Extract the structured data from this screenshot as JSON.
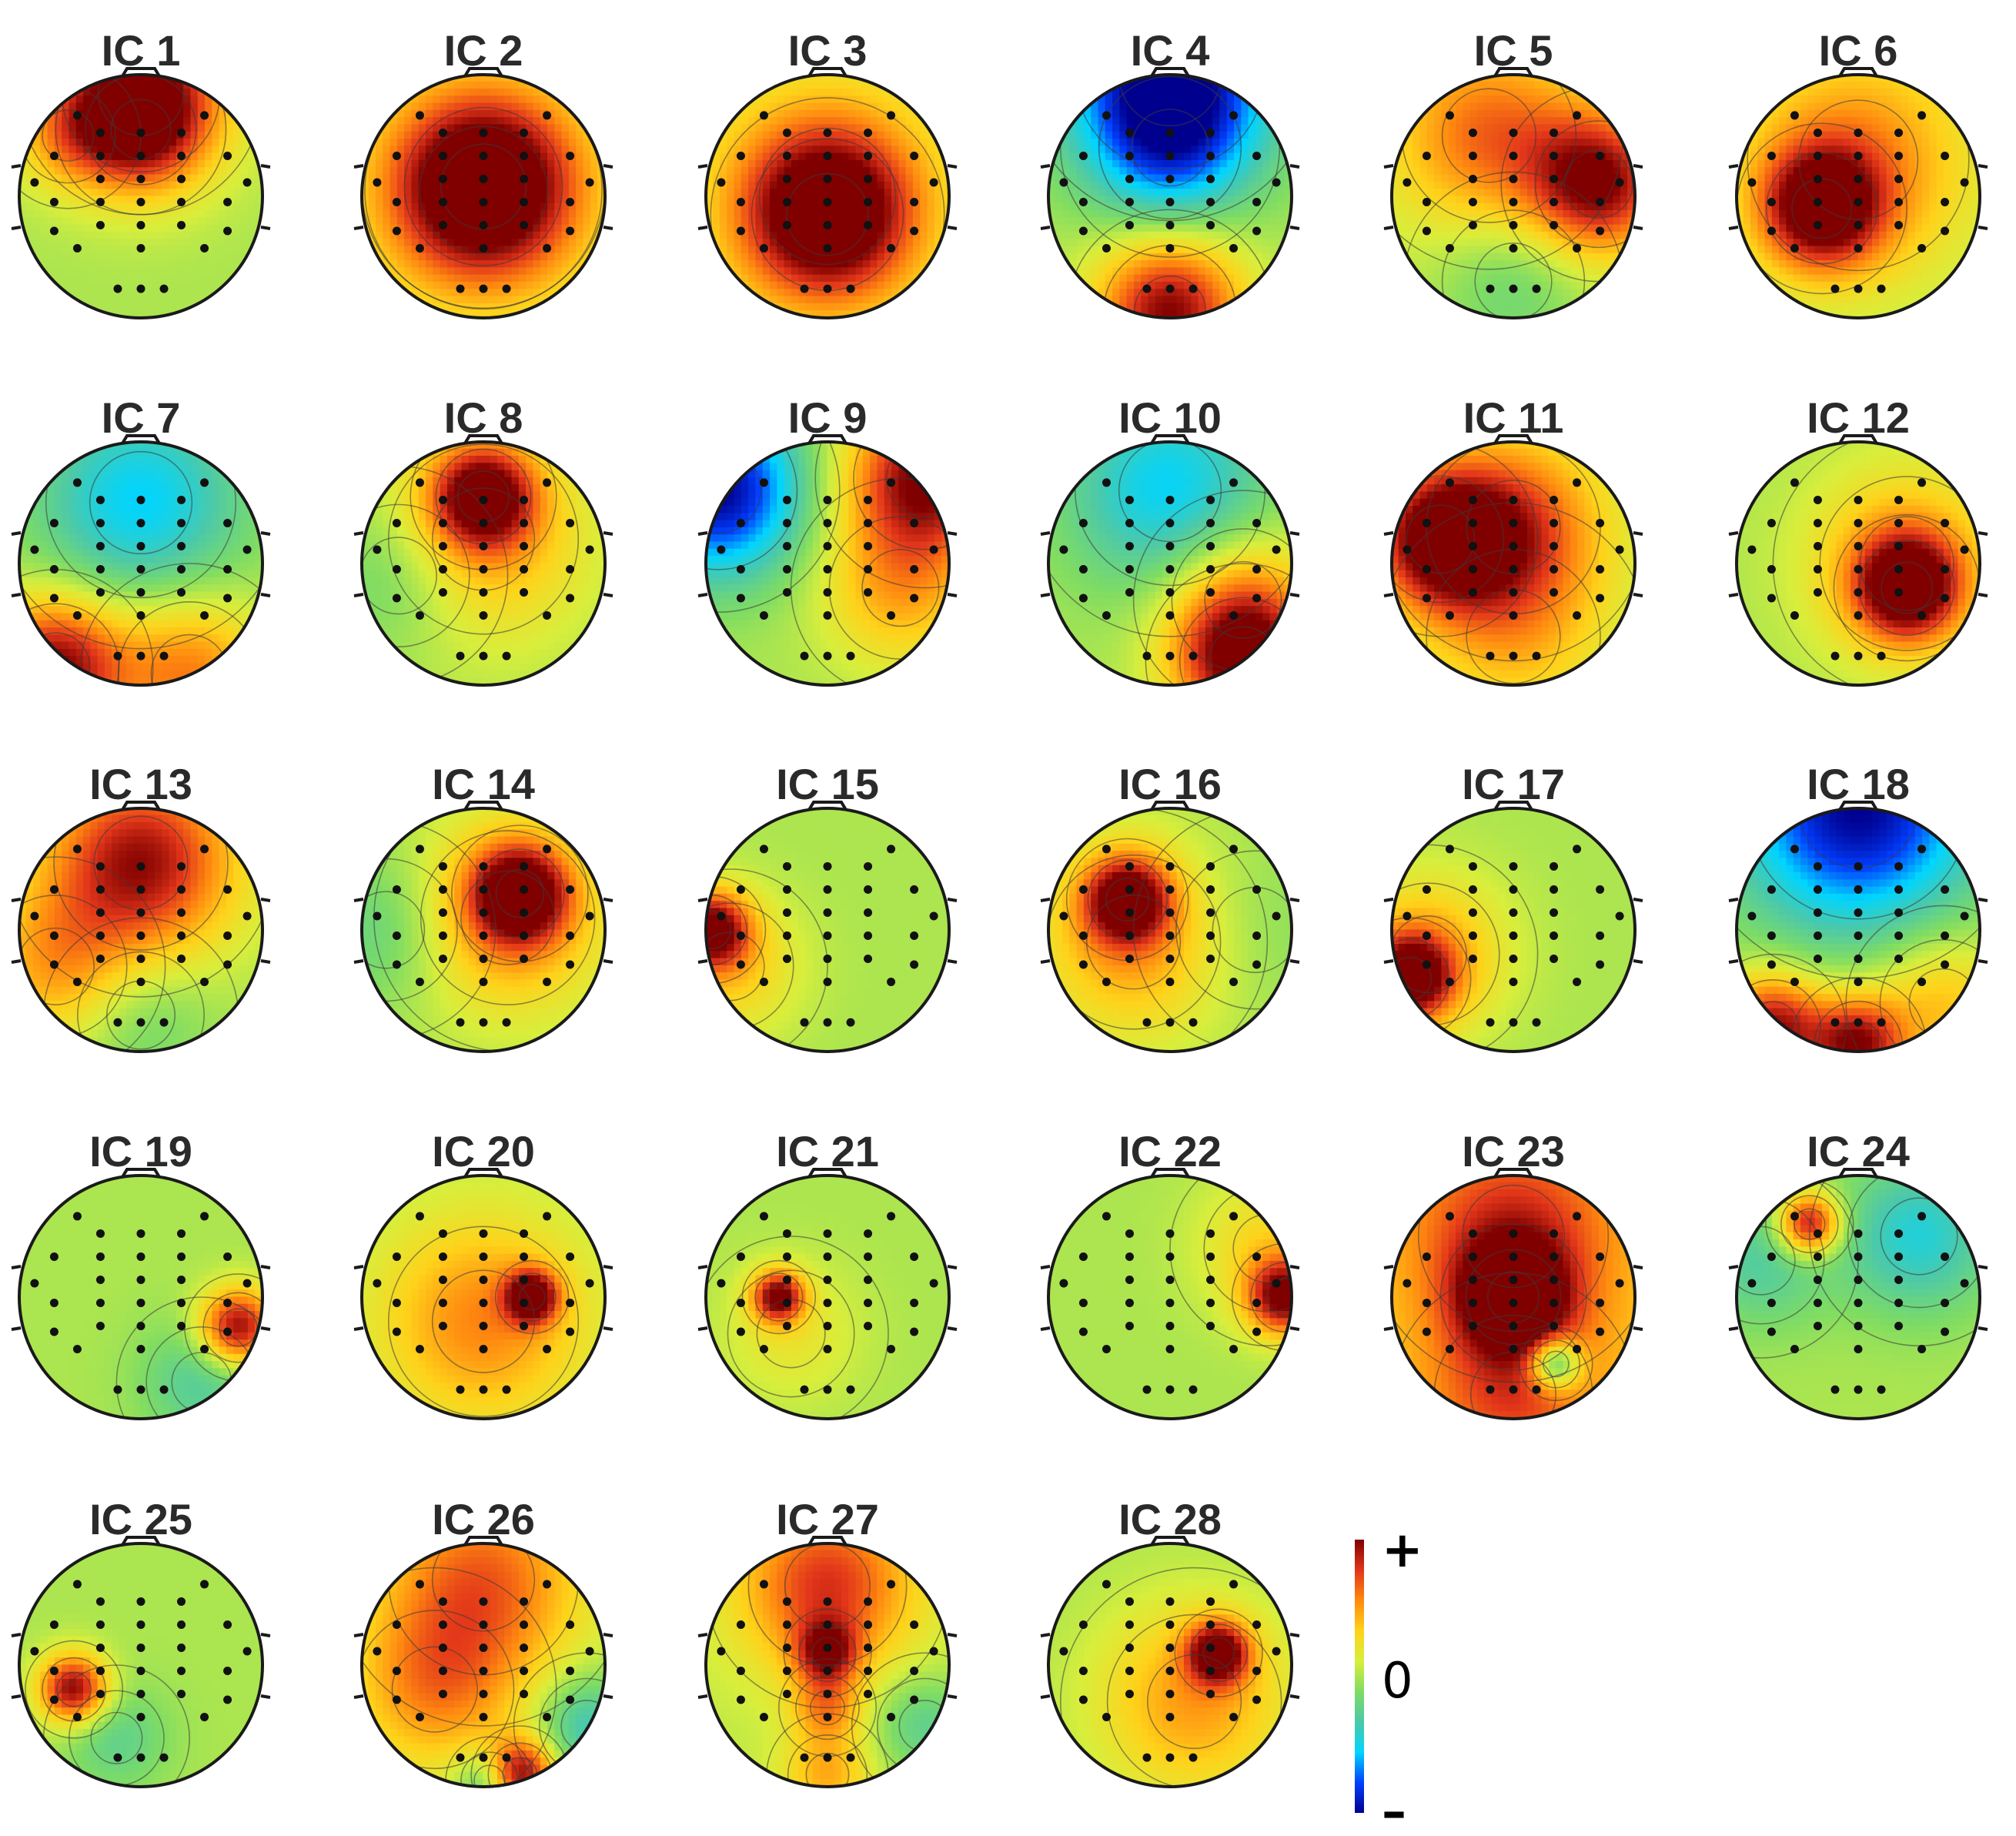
{
  "colors": {
    "background": "#ffffff",
    "head_outline": "#1a1a1a",
    "contour_line": "#3a3a3a",
    "electrode": "#111111",
    "title_text": "#2a2a2a",
    "jet": [
      "#00008f",
      "#0040ff",
      "#00d5ff",
      "#4cc9a8",
      "#7fdc63",
      "#d8ee3c",
      "#ffd21a",
      "#ff8a10",
      "#e2361a",
      "#800000"
    ]
  },
  "components": [
    {
      "title": "IC 1",
      "base": 0.0,
      "blobs": [
        [
          0,
          -0.85,
          0.95,
          0.5
        ],
        [
          0,
          -0.55,
          0.55,
          0.35
        ],
        [
          -0.6,
          -0.5,
          0.35,
          0.3
        ]
      ]
    },
    {
      "title": "IC 2",
      "base": 0.0,
      "blobs": [
        [
          0,
          -0.08,
          0.95,
          0.5
        ],
        [
          0,
          -0.05,
          0.55,
          0.75
        ]
      ]
    },
    {
      "title": "IC 3",
      "base": 0.0,
      "blobs": [
        [
          0,
          0.15,
          1.0,
          0.48
        ],
        [
          0,
          0.0,
          0.45,
          0.8
        ]
      ]
    },
    {
      "title": "IC 4",
      "base": 0.0,
      "blobs": [
        [
          0,
          -1.0,
          -1.0,
          0.6
        ],
        [
          0,
          -0.4,
          -0.45,
          0.45
        ],
        [
          0,
          0.95,
          1.0,
          0.42
        ]
      ]
    },
    {
      "title": "IC 5",
      "base": 0.05,
      "blobs": [
        [
          0.7,
          -0.1,
          0.95,
          0.4
        ],
        [
          -0.2,
          -0.5,
          0.6,
          0.55
        ],
        [
          0,
          0.7,
          -0.25,
          0.45
        ]
      ]
    },
    {
      "title": "IC 6",
      "base": 0.0,
      "blobs": [
        [
          -0.3,
          0.1,
          1.0,
          0.35
        ],
        [
          0,
          -0.3,
          0.55,
          0.7
        ]
      ]
    },
    {
      "title": "IC 7",
      "base": 0.0,
      "blobs": [
        [
          0,
          -0.5,
          -0.55,
          0.6
        ],
        [
          -0.7,
          0.85,
          1.0,
          0.4
        ],
        [
          0.4,
          0.9,
          0.6,
          0.45
        ]
      ]
    },
    {
      "title": "IC 8",
      "base": 0.0,
      "blobs": [
        [
          0,
          -0.55,
          1.0,
          0.3
        ],
        [
          0,
          -0.2,
          0.45,
          0.6
        ],
        [
          -0.7,
          0.1,
          -0.25,
          0.45
        ]
      ]
    },
    {
      "title": "IC 9",
      "base": 0.0,
      "blobs": [
        [
          -0.9,
          -0.6,
          -1.0,
          0.5
        ],
        [
          0.8,
          -0.7,
          1.0,
          0.45
        ],
        [
          0.6,
          0.2,
          0.45,
          0.45
        ]
      ]
    },
    {
      "title": "IC 10",
      "base": 0.0,
      "blobs": [
        [
          0,
          -0.6,
          -0.55,
          0.6
        ],
        [
          0.6,
          0.8,
          1.0,
          0.4
        ],
        [
          0.6,
          0.3,
          0.45,
          0.45
        ]
      ]
    },
    {
      "title": "IC 11",
      "base": 0.0,
      "blobs": [
        [
          -0.6,
          -0.2,
          1.0,
          0.4
        ],
        [
          0,
          -0.3,
          0.7,
          0.55
        ],
        [
          0,
          0.6,
          0.35,
          0.55
        ]
      ]
    },
    {
      "title": "IC 12",
      "base": 0.0,
      "blobs": [
        [
          0.4,
          0.2,
          1.0,
          0.3
        ],
        [
          0.4,
          0.0,
          0.5,
          0.55
        ]
      ]
    },
    {
      "title": "IC 13",
      "base": 0.0,
      "blobs": [
        [
          0,
          -0.55,
          0.95,
          0.55
        ],
        [
          -0.7,
          0.3,
          0.45,
          0.45
        ],
        [
          0,
          0.7,
          -0.2,
          0.4
        ]
      ]
    },
    {
      "title": "IC 14",
      "base": 0.0,
      "blobs": [
        [
          0.3,
          -0.3,
          1.0,
          0.28
        ],
        [
          0.2,
          -0.1,
          0.55,
          0.55
        ],
        [
          -0.8,
          0.0,
          -0.25,
          0.45
        ]
      ]
    },
    {
      "title": "IC 15",
      "base": 0.0,
      "blobs": [
        [
          -0.95,
          0.0,
          1.0,
          0.22
        ],
        [
          -0.8,
          0.3,
          0.35,
          0.4
        ]
      ]
    },
    {
      "title": "IC 16",
      "base": 0.0,
      "blobs": [
        [
          -0.35,
          -0.25,
          1.0,
          0.25
        ],
        [
          -0.3,
          0.1,
          0.5,
          0.55
        ],
        [
          0.7,
          0.0,
          -0.1,
          0.5
        ]
      ]
    },
    {
      "title": "IC 17",
      "base": 0.0,
      "blobs": [
        [
          -0.85,
          0.4,
          1.0,
          0.25
        ],
        [
          -0.7,
          0.2,
          0.45,
          0.45
        ]
      ]
    },
    {
      "title": "IC 18",
      "base": 0.0,
      "blobs": [
        [
          0,
          -1.0,
          -1.0,
          0.7
        ],
        [
          -0.7,
          0.8,
          0.95,
          0.3
        ],
        [
          0.0,
          0.95,
          0.95,
          0.28
        ],
        [
          0.7,
          0.6,
          0.4,
          0.4
        ]
      ]
    },
    {
      "title": "IC 19",
      "base": 0.0,
      "blobs": [
        [
          0.8,
          0.25,
          1.0,
          0.22
        ],
        [
          0.5,
          0.7,
          -0.3,
          0.35
        ]
      ]
    },
    {
      "title": "IC 20",
      "base": 0.02,
      "blobs": [
        [
          0.4,
          0.0,
          1.0,
          0.15
        ],
        [
          0,
          0.2,
          0.55,
          0.6
        ]
      ]
    },
    {
      "title": "IC 21",
      "base": 0.0,
      "blobs": [
        [
          -0.4,
          0.0,
          1.0,
          0.15
        ],
        [
          -0.3,
          0.3,
          0.2,
          0.4
        ]
      ]
    },
    {
      "title": "IC 22",
      "base": 0.0,
      "blobs": [
        [
          0.95,
          0.0,
          1.0,
          0.22
        ],
        [
          0.8,
          -0.4,
          0.3,
          0.4
        ]
      ]
    },
    {
      "title": "IC 23",
      "base": 0.3,
      "blobs": [
        [
          0,
          0.0,
          0.95,
          0.3
        ],
        [
          0,
          -0.5,
          0.55,
          0.6
        ],
        [
          0.35,
          0.55,
          -0.85,
          0.15
        ],
        [
          0,
          0.8,
          0.45,
          0.5
        ]
      ]
    },
    {
      "title": "IC 24",
      "base": 0.0,
      "blobs": [
        [
          -0.4,
          -0.6,
          1.0,
          0.18
        ],
        [
          0.5,
          -0.5,
          -0.45,
          0.45
        ],
        [
          -0.8,
          -0.3,
          -0.3,
          0.4
        ]
      ]
    },
    {
      "title": "IC 25",
      "base": 0.0,
      "blobs": [
        [
          -0.55,
          0.2,
          1.0,
          0.2
        ],
        [
          -0.2,
          0.6,
          -0.25,
          0.3
        ]
      ]
    },
    {
      "title": "IC 26",
      "base": 0.0,
      "blobs": [
        [
          0,
          -0.7,
          0.65,
          0.6
        ],
        [
          0.3,
          0.9,
          1.0,
          0.2
        ],
        [
          0.05,
          0.95,
          -0.45,
          0.18
        ],
        [
          0.85,
          0.5,
          -0.4,
          0.3
        ],
        [
          -0.4,
          0.2,
          0.5,
          0.5
        ]
      ]
    },
    {
      "title": "IC 27",
      "base": 0.05,
      "blobs": [
        [
          0,
          -0.65,
          0.75,
          0.5
        ],
        [
          0,
          -0.1,
          0.7,
          0.18
        ],
        [
          0,
          0.35,
          0.45,
          0.2
        ],
        [
          0.8,
          0.5,
          -0.3,
          0.3
        ],
        [
          0,
          0.9,
          0.4,
          0.25
        ]
      ]
    },
    {
      "title": "IC 28",
      "base": 0.0,
      "blobs": [
        [
          0.4,
          -0.1,
          1.0,
          0.18
        ],
        [
          0.2,
          0.3,
          0.5,
          0.55
        ]
      ]
    }
  ],
  "colorbar": {
    "label_plus": "+",
    "label_zero": "0",
    "label_minus": "–"
  }
}
